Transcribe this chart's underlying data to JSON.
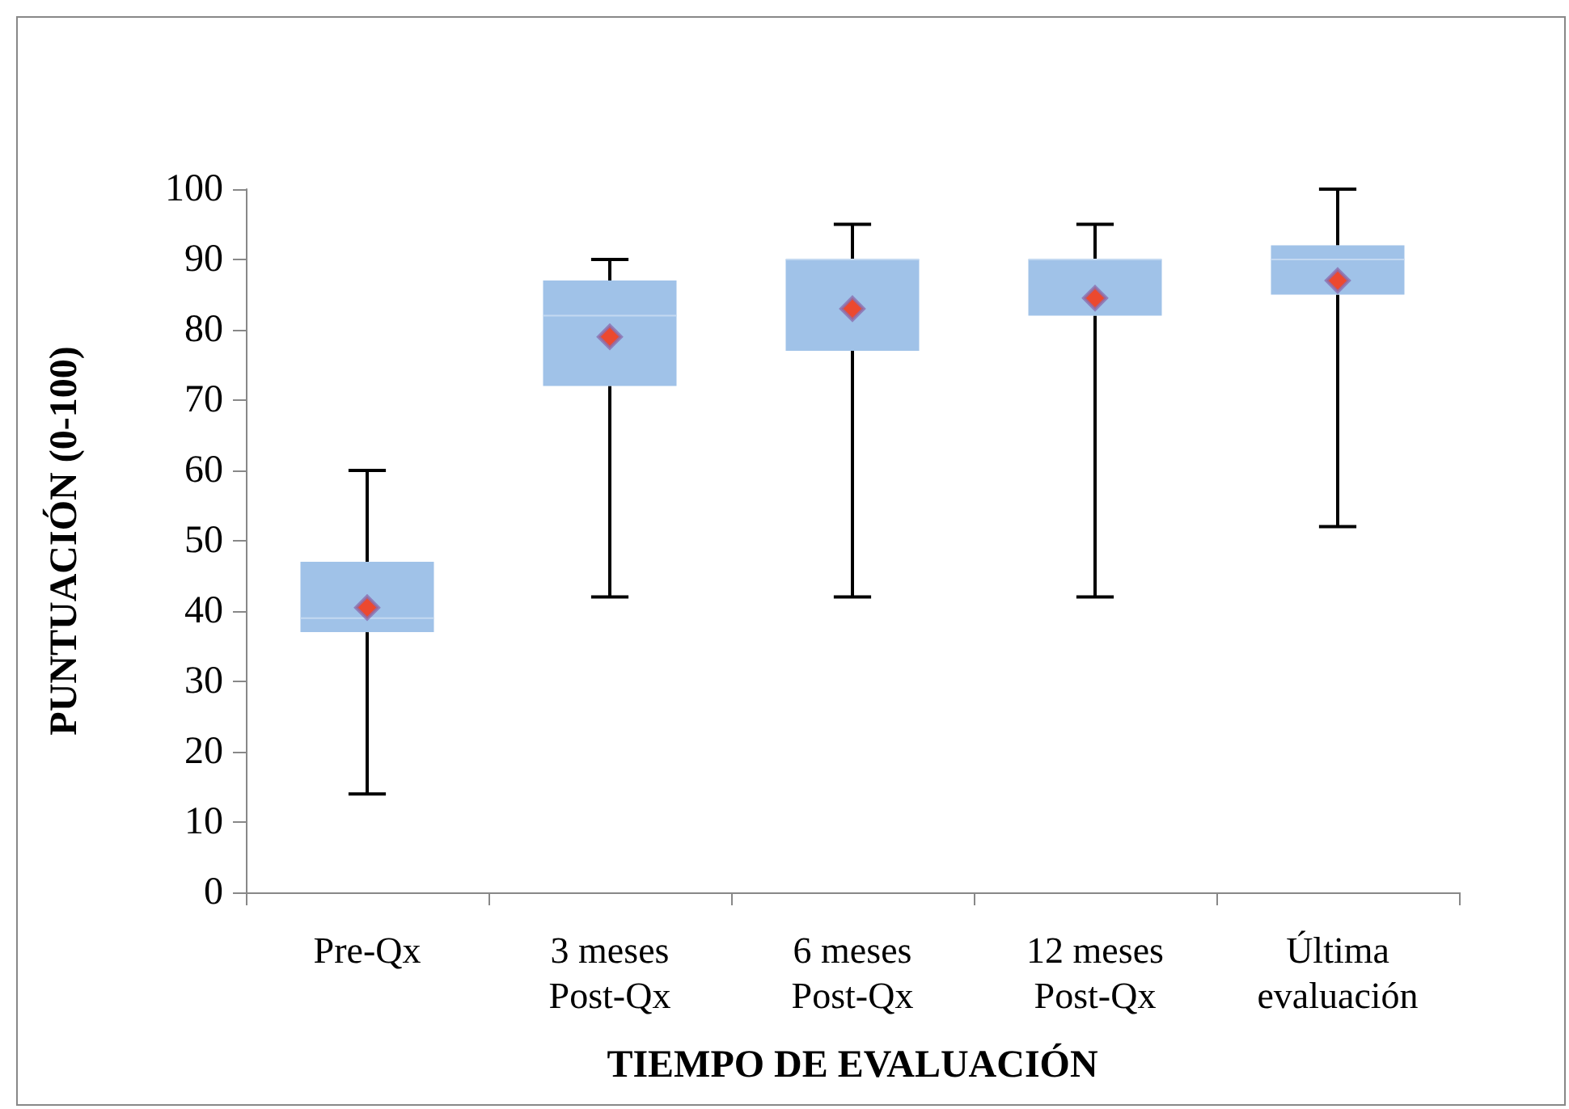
{
  "chart_data": {
    "type": "box",
    "xlabel": "TIEMPO DE EVALUACIÓN",
    "ylabel": "PUNTUACIÓN (0-100)",
    "categories": [
      "Pre-Qx",
      "3 meses\nPost-Qx",
      "6 meses\nPost-Qx",
      "12 meses\nPost-Qx",
      "Última\nevaluación"
    ],
    "series": [
      {
        "color": "#a0c2e8",
        "boxes": [
          {
            "low": 14,
            "q1": 37,
            "median": 39,
            "q3": 47,
            "high": 60,
            "mean": 40.5
          },
          {
            "low": 42,
            "q1": 72,
            "median": 82,
            "q3": 87,
            "high": 90,
            "mean": 79
          },
          {
            "low": 42,
            "q1": 77,
            "median": 90,
            "q3": 90,
            "high": 95,
            "mean": 83
          },
          {
            "low": 42,
            "q1": 82,
            "median": 90,
            "q3": 90,
            "high": 95,
            "mean": 84.5
          },
          {
            "low": 52,
            "q1": 85,
            "median": 90,
            "q3": 92,
            "high": 100,
            "mean": 87
          }
        ]
      }
    ],
    "ylim": [
      0,
      100
    ],
    "yticks": [
      0,
      10,
      20,
      30,
      40,
      50,
      60,
      70,
      80,
      90,
      100
    ],
    "grid": false,
    "marker": "diamond"
  }
}
